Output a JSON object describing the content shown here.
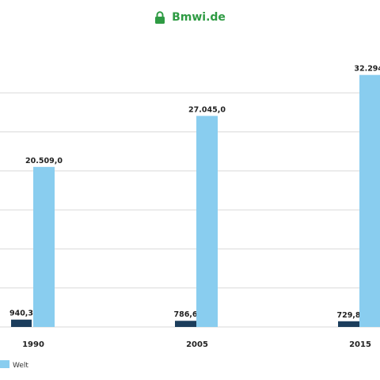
{
  "browser": {
    "url": "Bmwi.de",
    "lock_icon": "lock-icon",
    "accent": "#2e9b43"
  },
  "chart_data": {
    "type": "bar",
    "categories": [
      "1990",
      "2005",
      "2015"
    ],
    "series": [
      {
        "values": [
          940.3,
          786.6,
          729.8
        ],
        "labels": [
          "940,3",
          "786,6",
          "729,8"
        ],
        "color": "#1b3d5c"
      },
      {
        "name": "Welt",
        "values": [
          20509.0,
          27045.0,
          32294.0
        ],
        "labels": [
          "20.509,0",
          "27.045,0",
          "32.294,"
        ],
        "color": "#89cdef"
      }
    ],
    "ylim": [
      0,
      35000
    ],
    "grid": true,
    "legend": "bottom-left"
  }
}
